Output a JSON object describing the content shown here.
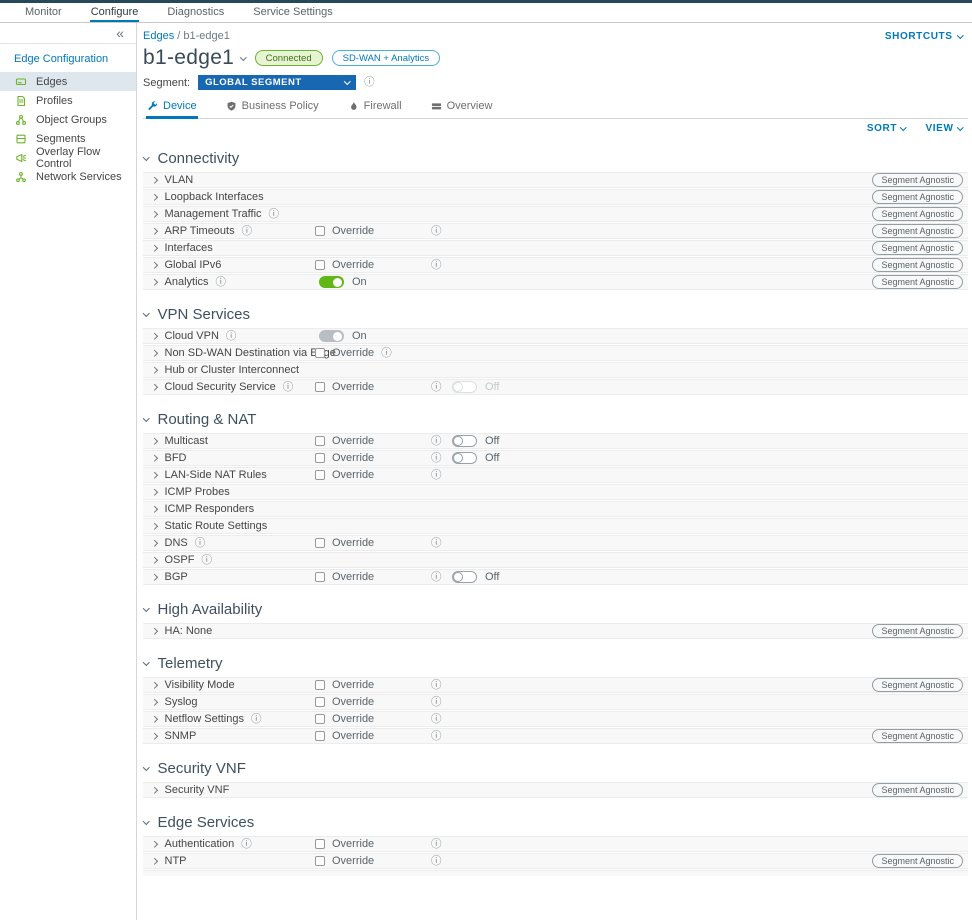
{
  "topnav": {
    "items": [
      {
        "label": "Monitor",
        "active": false
      },
      {
        "label": "Configure",
        "active": true
      },
      {
        "label": "Diagnostics",
        "active": false
      },
      {
        "label": "Service Settings",
        "active": false
      }
    ]
  },
  "sidebar": {
    "collapse_icon": "chevron-double-left",
    "title": "Edge Configuration",
    "items": [
      {
        "label": "Edges",
        "icon": "edges-icon",
        "selected": true
      },
      {
        "label": "Profiles",
        "icon": "profiles-icon",
        "selected": false
      },
      {
        "label": "Object Groups",
        "icon": "object-groups-icon",
        "selected": false
      },
      {
        "label": "Segments",
        "icon": "segments-icon",
        "selected": false
      },
      {
        "label": "Overlay Flow Control",
        "icon": "overlay-flow-control-icon",
        "selected": false
      },
      {
        "label": "Network Services",
        "icon": "network-services-icon",
        "selected": false
      }
    ]
  },
  "breadcrumb": {
    "link": "Edges",
    "current": "/ b1-edge1"
  },
  "shortcuts": {
    "label": "SHORTCUTS"
  },
  "edge": {
    "title": "b1-edge1",
    "status_badge": "Connected",
    "license_badge": "SD-WAN + Analytics"
  },
  "segment": {
    "label": "Segment:",
    "value": "GLOBAL SEGMENT"
  },
  "tabs": [
    {
      "label": "Device",
      "icon": "wrench-icon",
      "active": true
    },
    {
      "label": "Business Policy",
      "icon": "shield-icon",
      "active": false
    },
    {
      "label": "Firewall",
      "icon": "flame-icon",
      "active": false
    },
    {
      "label": "Overview",
      "icon": "overview-icon",
      "active": false
    }
  ],
  "toolbar": {
    "sort": "SORT",
    "view": "VIEW"
  },
  "labels": {
    "override": "Override"
  },
  "icons": {
    "info": "ⓘ"
  },
  "colors": {
    "accent_blue": "#0079b8",
    "segment_button_blue": "#1767b3",
    "toggle_green": "#61b715",
    "sidebar_icon_green": "#6cb42c",
    "top_strip": "#25495a",
    "selected_sidebar_bg": "#dee7ed"
  },
  "sections": [
    {
      "title": "Connectivity",
      "rows": [
        {
          "label": "VLAN",
          "badge": "Segment Agnostic"
        },
        {
          "label": "Loopback Interfaces",
          "badge": "Segment Agnostic"
        },
        {
          "label": "Management Traffic",
          "info": true,
          "badge": "Segment Agnostic"
        },
        {
          "label": "ARP Timeouts",
          "info": true,
          "override": true,
          "info2": true,
          "badge": "Segment Agnostic"
        },
        {
          "label": "Interfaces",
          "badge": "Segment Agnostic"
        },
        {
          "label": "Global IPv6",
          "override": true,
          "info2": true,
          "badge": "Segment Agnostic"
        },
        {
          "label": "Analytics",
          "info": true,
          "toggle": {
            "state": "on",
            "variant": "green",
            "label": "On",
            "column": "main"
          },
          "badge": "Segment Agnostic"
        }
      ]
    },
    {
      "title": "VPN Services",
      "rows": [
        {
          "label": "Cloud VPN",
          "info": true,
          "toggle": {
            "state": "on",
            "variant": "gray",
            "label": "On",
            "column": "main"
          }
        },
        {
          "label": "Non SD-WAN Destination via Edge",
          "override": true,
          "override_info": true
        },
        {
          "label": "Hub or Cluster Interconnect"
        },
        {
          "label": "Cloud Security Service",
          "info": true,
          "override": true,
          "info2": true,
          "toggle": {
            "state": "off",
            "variant": "disabled",
            "label": "Off",
            "column": "right"
          }
        }
      ]
    },
    {
      "title": "Routing & NAT",
      "rows": [
        {
          "label": "Multicast",
          "override": true,
          "info2": true,
          "toggle": {
            "state": "off",
            "variant": "normal",
            "label": "Off",
            "column": "right"
          }
        },
        {
          "label": "BFD",
          "override": true,
          "info2": true,
          "toggle": {
            "state": "off",
            "variant": "normal",
            "label": "Off",
            "column": "right"
          }
        },
        {
          "label": "LAN-Side NAT Rules",
          "override": true,
          "info2": true
        },
        {
          "label": "ICMP Probes"
        },
        {
          "label": "ICMP Responders"
        },
        {
          "label": "Static Route Settings"
        },
        {
          "label": "DNS",
          "info": true,
          "override": true,
          "info2": true
        },
        {
          "label": "OSPF",
          "info": true
        },
        {
          "label": "BGP",
          "override": true,
          "info2": true,
          "toggle": {
            "state": "off",
            "variant": "normal",
            "label": "Off",
            "column": "right"
          }
        }
      ]
    },
    {
      "title": "High Availability",
      "rows": [
        {
          "label": "HA: None",
          "badge": "Segment Agnostic"
        }
      ]
    },
    {
      "title": "Telemetry",
      "rows": [
        {
          "label": "Visibility Mode",
          "override": true,
          "info2": true,
          "badge": "Segment Agnostic"
        },
        {
          "label": "Syslog",
          "override": true,
          "info2": true
        },
        {
          "label": "Netflow Settings",
          "info": true,
          "override": true,
          "info2": true
        },
        {
          "label": "SNMP",
          "override": true,
          "info2": true,
          "badge": "Segment Agnostic"
        }
      ]
    },
    {
      "title": "Security VNF",
      "rows": [
        {
          "label": "Security VNF",
          "badge": "Segment Agnostic"
        }
      ]
    },
    {
      "title": "Edge Services",
      "rows": [
        {
          "label": "Authentication",
          "info": true,
          "override": true,
          "info2": true
        },
        {
          "label": "NTP",
          "override": true,
          "info2": true,
          "badge": "Segment Agnostic"
        }
      ]
    }
  ]
}
